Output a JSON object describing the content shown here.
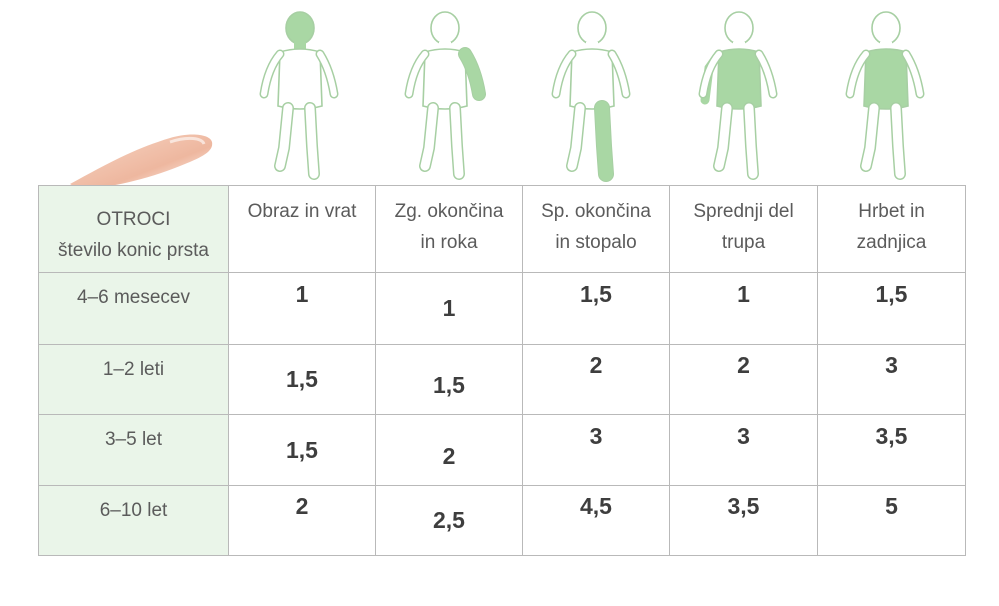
{
  "table": {
    "corner": {
      "line1": "OTROCI",
      "line2": "število konic prsta"
    },
    "columns": [
      {
        "line1": "Obraz in vrat",
        "line2": ""
      },
      {
        "line1": "Zg. okončina",
        "line2": "in roka"
      },
      {
        "line1": "Sp. okončina",
        "line2": "in stopalo"
      },
      {
        "line1": "Sprednji del",
        "line2": "trupa"
      },
      {
        "line1": "Hrbet in",
        "line2": "zadnjica"
      }
    ],
    "rows": [
      {
        "label": "4–6 mesecev",
        "values": [
          "1",
          "1",
          "1,5",
          "1",
          "1,5"
        ]
      },
      {
        "label": "1–2 leti",
        "values": [
          "1,5",
          "1,5",
          "2",
          "2",
          "3"
        ]
      },
      {
        "label": "3–5 let",
        "values": [
          "1,5",
          "2",
          "3",
          "3",
          "3,5"
        ]
      },
      {
        "label": "6–10 let",
        "values": [
          "2",
          "2,5",
          "4,5",
          "3,5",
          "5"
        ]
      }
    ]
  },
  "colors": {
    "highlight_green": "#a9d7a4",
    "outline_green": "#a7cfa3",
    "header_bg": "#eaf5e9",
    "border": "#b9b9b9"
  }
}
